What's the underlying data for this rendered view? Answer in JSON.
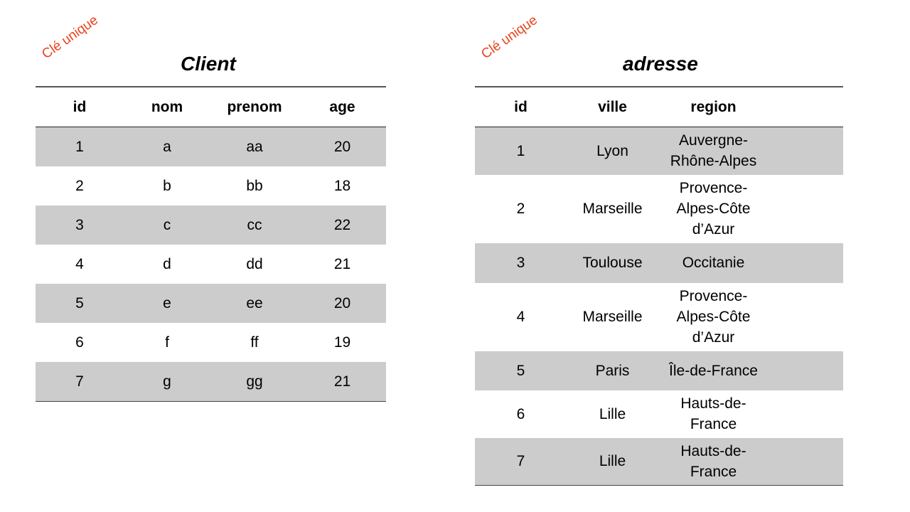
{
  "client": {
    "key_label": "Clé unique",
    "title": "Client",
    "columns": [
      "id",
      "nom",
      "prenom",
      "age"
    ],
    "rows": [
      [
        "1",
        "a",
        "aa",
        "20"
      ],
      [
        "2",
        "b",
        "bb",
        "18"
      ],
      [
        "3",
        "c",
        "cc",
        "22"
      ],
      [
        "4",
        "d",
        "dd",
        "21"
      ],
      [
        "5",
        "e",
        "ee",
        "20"
      ],
      [
        "6",
        "f",
        "ff",
        "19"
      ],
      [
        "7",
        "g",
        "gg",
        "21"
      ]
    ]
  },
  "adresse": {
    "key_label": "Clé unique",
    "title": "adresse",
    "columns": [
      "id",
      "ville",
      "region"
    ],
    "rows": [
      [
        "1",
        "Lyon",
        "Auvergne-Rhône-Alpes"
      ],
      [
        "2",
        "Marseille",
        "Provence-Alpes-Côte d’Azur"
      ],
      [
        "3",
        "Toulouse",
        "Occitanie"
      ],
      [
        "4",
        "Marseille",
        "Provence-Alpes-Côte d’Azur"
      ],
      [
        "5",
        "Paris",
        "Île-de-France"
      ],
      [
        "6",
        "Lille",
        "Hauts-de-France"
      ],
      [
        "7",
        "Lille",
        "Hauts-de-France"
      ]
    ]
  },
  "colors": {
    "key_label": "#e8431c",
    "row_band": "#cccccc"
  }
}
